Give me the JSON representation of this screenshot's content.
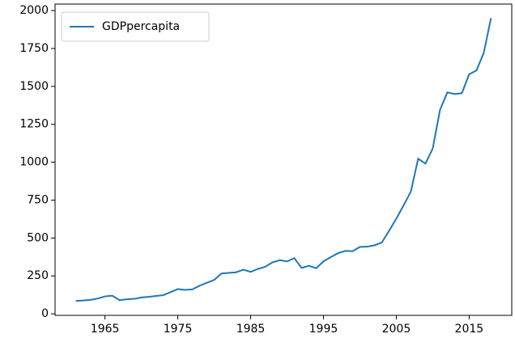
{
  "chart_data": {
    "type": "line",
    "x": [
      1961,
      1962,
      1963,
      1964,
      1965,
      1966,
      1967,
      1968,
      1969,
      1970,
      1971,
      1972,
      1973,
      1974,
      1975,
      1976,
      1977,
      1978,
      1979,
      1980,
      1981,
      1982,
      1983,
      1984,
      1985,
      1986,
      1987,
      1988,
      1989,
      1990,
      1991,
      1992,
      1993,
      1994,
      1995,
      1996,
      1997,
      1998,
      1999,
      2000,
      2001,
      2002,
      2003,
      2004,
      2005,
      2006,
      2007,
      2008,
      2009,
      2010,
      2011,
      2012,
      2013,
      2014,
      2015,
      2016,
      2017,
      2018
    ],
    "series": [
      {
        "name": "GDPpercapita",
        "color": "#1f77b4",
        "values": [
          85,
          88,
          92,
          101,
          115,
          120,
          90,
          96,
          99,
          108,
          112,
          118,
          123,
          143,
          163,
          158,
          161,
          186,
          205,
          224,
          266,
          270,
          274,
          291,
          277,
          296,
          310,
          340,
          354,
          346,
          367,
          303,
          317,
          301,
          346,
          374,
          400,
          415,
          413,
          441,
          443,
          452,
          470,
          547,
          628,
          715,
          807,
          1023,
          991,
          1090,
          1345,
          1460,
          1450,
          1455,
          1580,
          1605,
          1720,
          1950
        ]
      }
    ],
    "xlim": [
      1958.15,
      2020.85
    ],
    "ylim": [
      -10,
      2043
    ],
    "xticks": [
      1965,
      1975,
      1985,
      1995,
      2005,
      2015
    ],
    "yticks": [
      0,
      250,
      500,
      750,
      1000,
      1250,
      1500,
      1750,
      2000
    ],
    "legend": "upper left",
    "grid": false
  }
}
